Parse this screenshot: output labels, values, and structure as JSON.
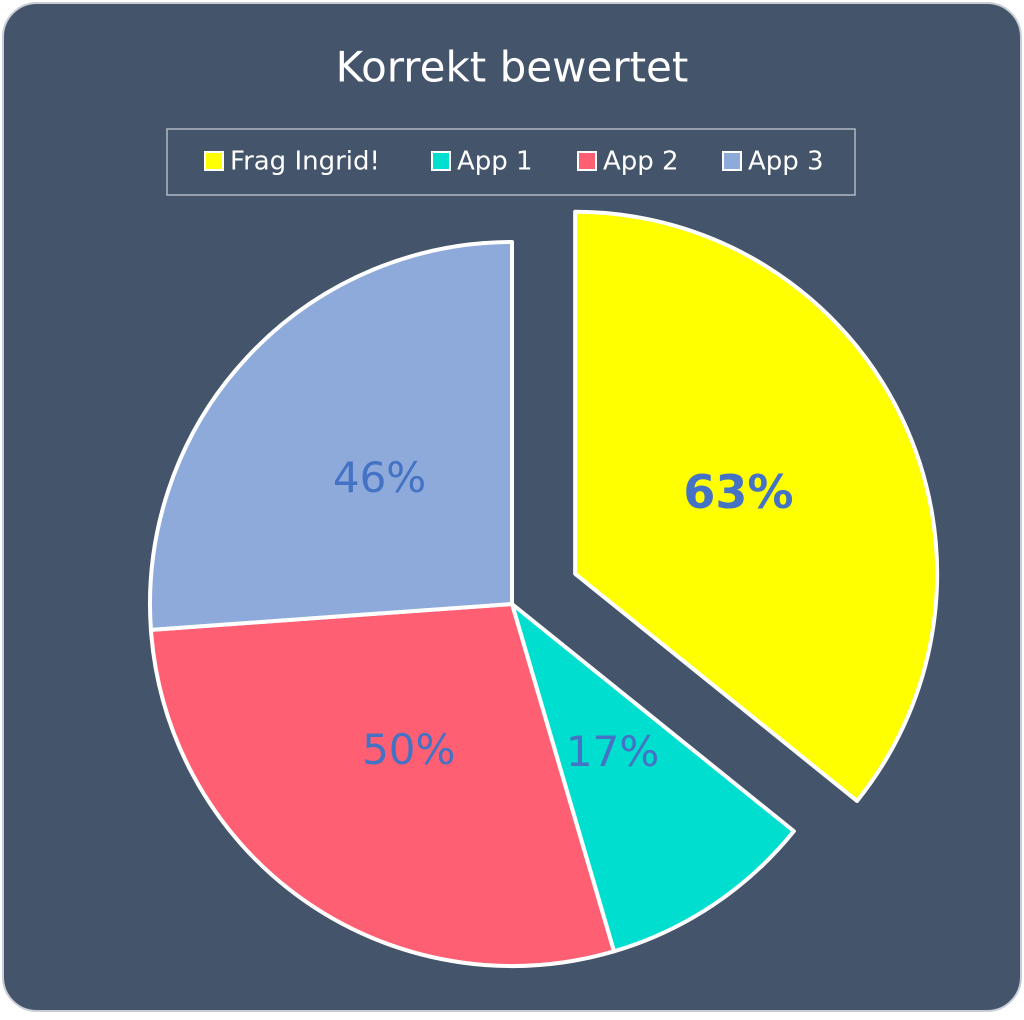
{
  "chart_data": {
    "type": "pie",
    "title": "Korrekt bewertet",
    "categories": [
      "Frag Ingrid!",
      "App 1",
      "App 2",
      "App 3"
    ],
    "values": [
      63,
      17,
      50,
      46
    ],
    "value_labels": [
      "63%",
      "17%",
      "50%",
      "46%"
    ],
    "colors": [
      "#ffff00",
      "#00dfcf",
      "#ff5f73",
      "#8eaadb"
    ],
    "legend": "top"
  }
}
